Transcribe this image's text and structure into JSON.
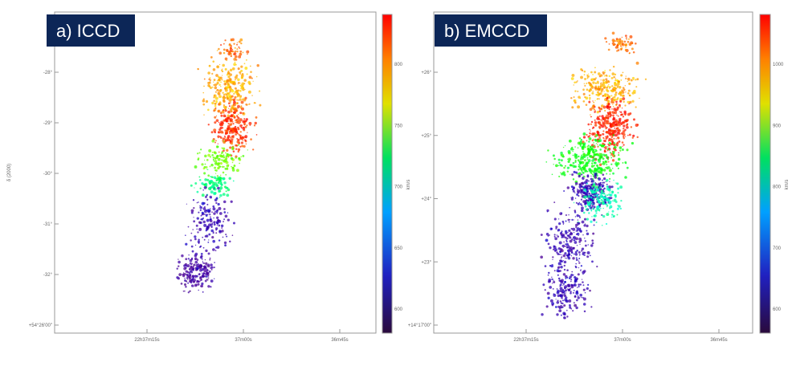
{
  "panels": [
    {
      "label": "a) ICCD",
      "y_axis_label": "δ (2000)",
      "y_ticks": [
        "-28°",
        "-29°",
        "-30°",
        "-31°",
        "-32°",
        "+54°26'00\""
      ],
      "x_ticks": [
        "22h37m15s",
        "37m00s",
        "36m45s"
      ],
      "colorbar_ticks": [
        "800",
        "750",
        "700",
        "650",
        "600"
      ],
      "colorbar_label": "km/s"
    },
    {
      "label": "b) EMCCD",
      "y_ticks": [
        "+26°",
        "+25°",
        "+24°",
        "+23°",
        "+14°17'00\""
      ],
      "x_ticks": [
        "22h37m15s",
        "37m00s",
        "36m45s"
      ],
      "colorbar_ticks": [
        "1000",
        "900",
        "800",
        "700",
        "600"
      ],
      "colorbar_label": "km/s"
    }
  ]
}
